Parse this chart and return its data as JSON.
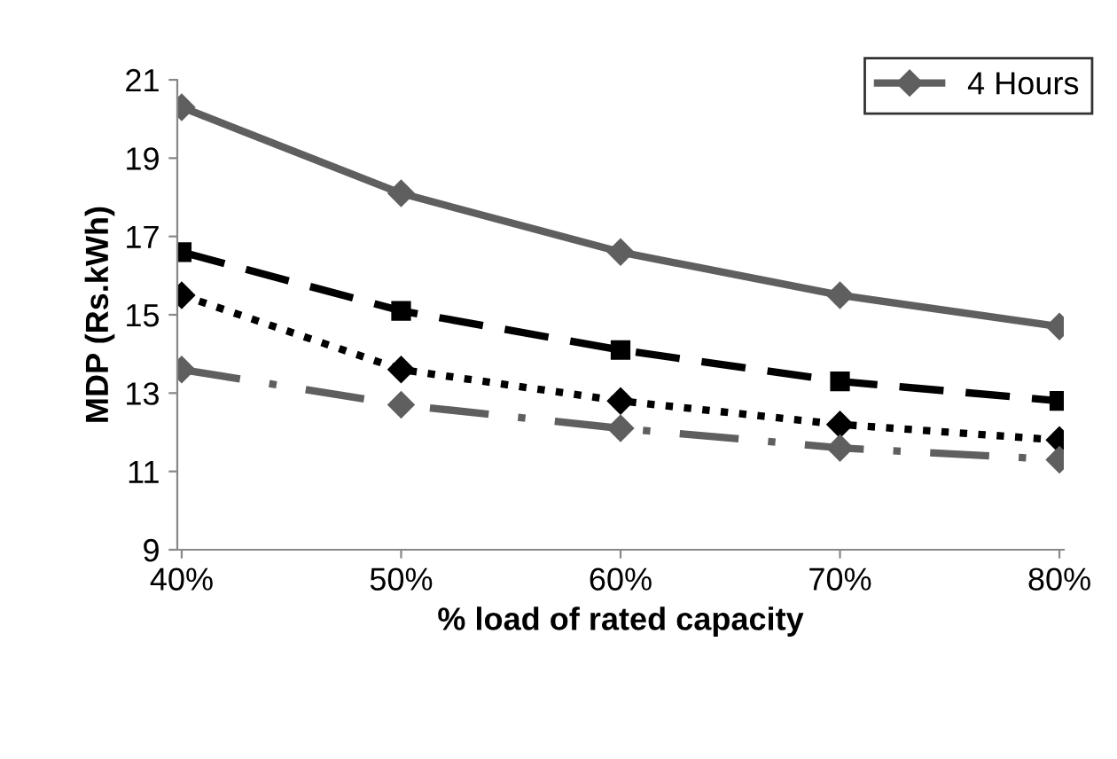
{
  "chart_data": {
    "type": "line",
    "xlabel": "% load of rated capacity",
    "ylabel": "MDP (Rs.kWh)",
    "categories": [
      "40%",
      "50%",
      "60%",
      "70%",
      "80%"
    ],
    "series": [
      {
        "name": "4 Hours",
        "color": "#5f5f5f",
        "values": [
          20.3,
          18.1,
          16.6,
          15.5,
          14.7
        ],
        "line_style": "solid",
        "marker": "diamond"
      },
      {
        "color": "#000000",
        "values": [
          16.6,
          15.1,
          14.1,
          13.3,
          12.8
        ],
        "line_style": "dashed",
        "marker": "square"
      },
      {
        "color": "#000000",
        "values": [
          15.5,
          13.6,
          12.8,
          12.2,
          11.8
        ],
        "line_style": "dotted",
        "marker": "diamond"
      },
      {
        "color": "#5f5f5f",
        "values": [
          13.6,
          12.7,
          12.1,
          11.6,
          11.3
        ],
        "line_style": "dashdot",
        "marker": "diamond"
      }
    ],
    "ylim": [
      9,
      21
    ],
    "yticks": [
      9,
      11,
      13,
      15,
      17,
      19,
      21
    ],
    "grid": false,
    "legend": "top right"
  }
}
